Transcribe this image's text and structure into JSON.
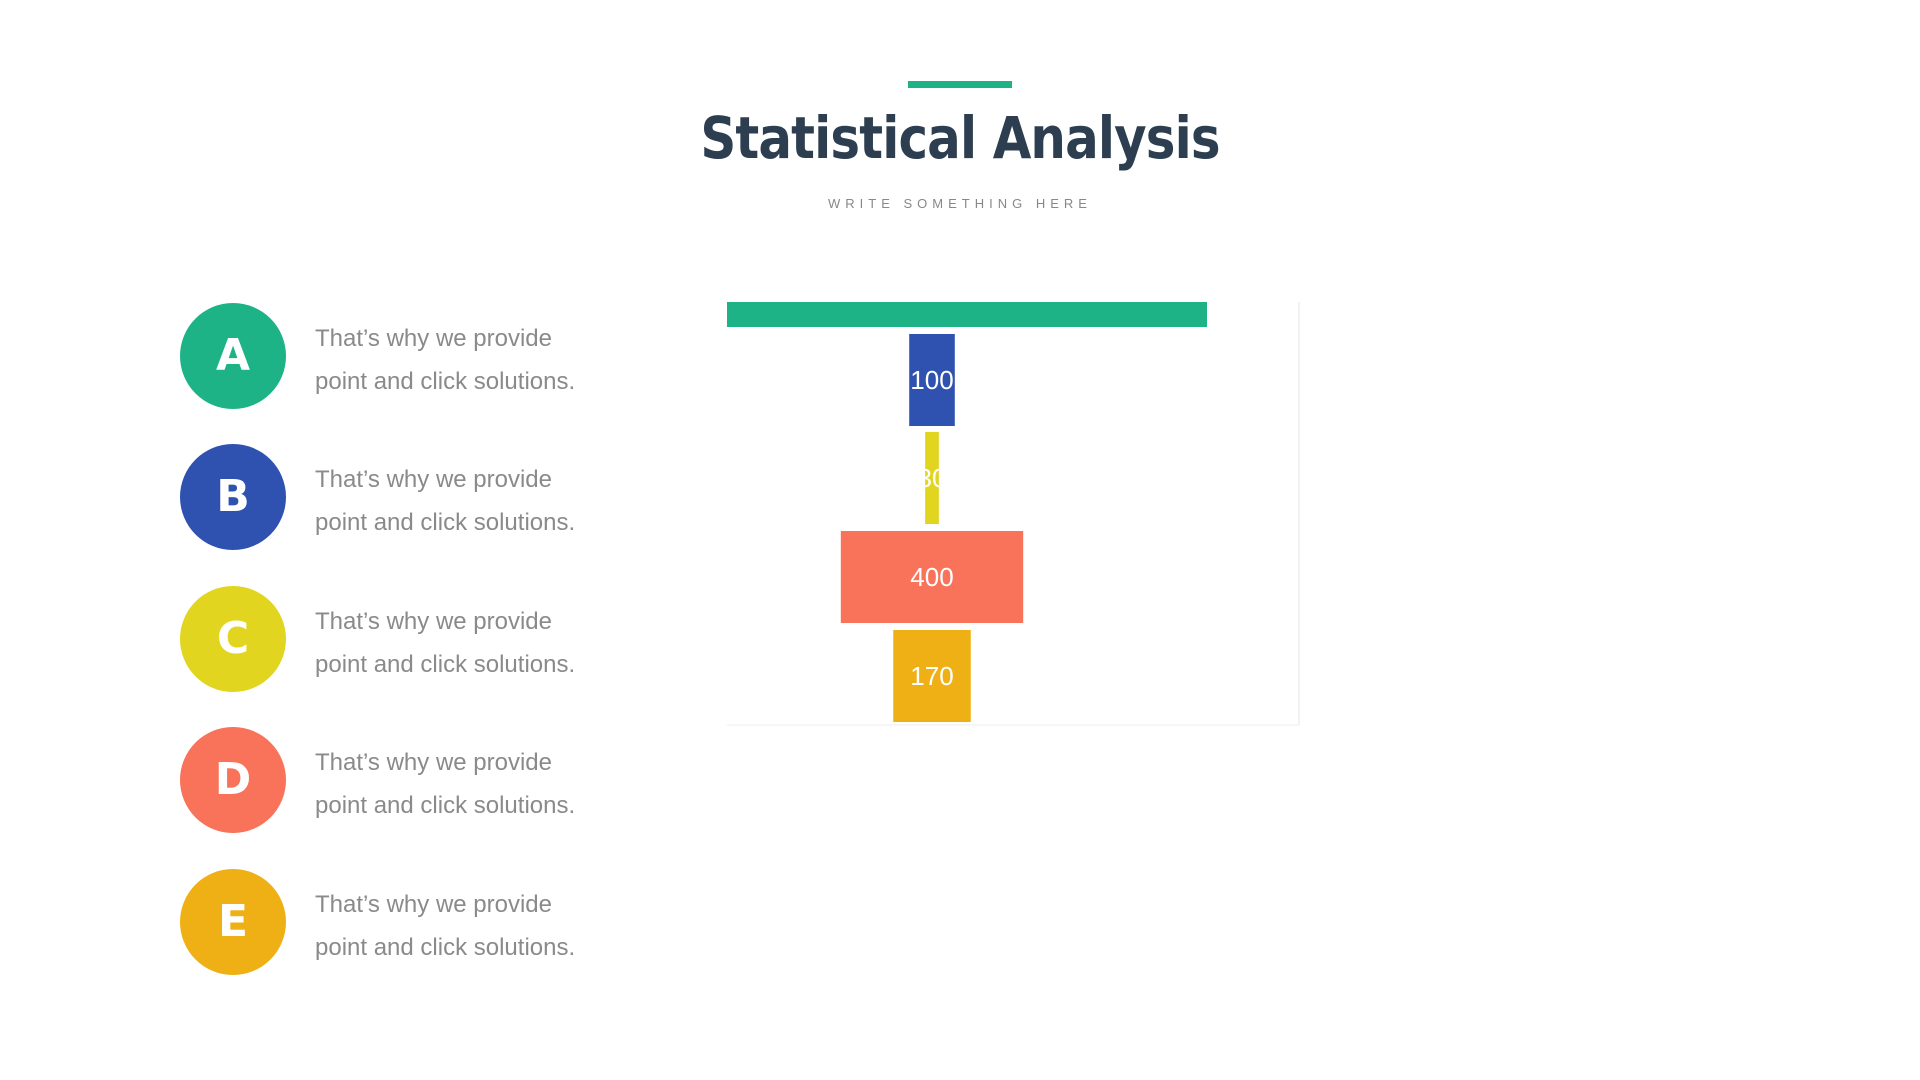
{
  "slide": {
    "title": "Statistical Analysis",
    "subtitle": "WRITE SOMETHING HERE",
    "accent_color": "#1db386"
  },
  "legend": [
    {
      "letter": "A",
      "text_line1": "That’s why we provide",
      "text_line2": "point and click solutions.",
      "color": "#1db386"
    },
    {
      "letter": "B",
      "text_line1": "That’s why we provide",
      "text_line2": "point and click solutions.",
      "color": "#2f52b0"
    },
    {
      "letter": "C",
      "text_line1": "That’s why we provide",
      "text_line2": "point and click solutions.",
      "color": "#e2d51f"
    },
    {
      "letter": "D",
      "text_line1": "That’s why we provide",
      "text_line2": "point and click solutions.",
      "color": "#f8735a"
    },
    {
      "letter": "E",
      "text_line1": "That’s why we provide",
      "text_line2": "point and click solutions.",
      "color": "#efb015"
    }
  ],
  "chart_data": {
    "type": "bar",
    "orientation": "horizontal-centered",
    "categories": [
      "A",
      "B",
      "C",
      "D",
      "E"
    ],
    "values": [
      null,
      100,
      30,
      400,
      170
    ],
    "value_labels": [
      "",
      "100",
      "30",
      "400",
      "170"
    ],
    "colors": [
      "#1db386",
      "#2f52b0",
      "#e2d51f",
      "#f8735a",
      "#efb015"
    ],
    "title": "",
    "xlabel": "",
    "ylabel": "",
    "grid": false,
    "legend": "none"
  }
}
